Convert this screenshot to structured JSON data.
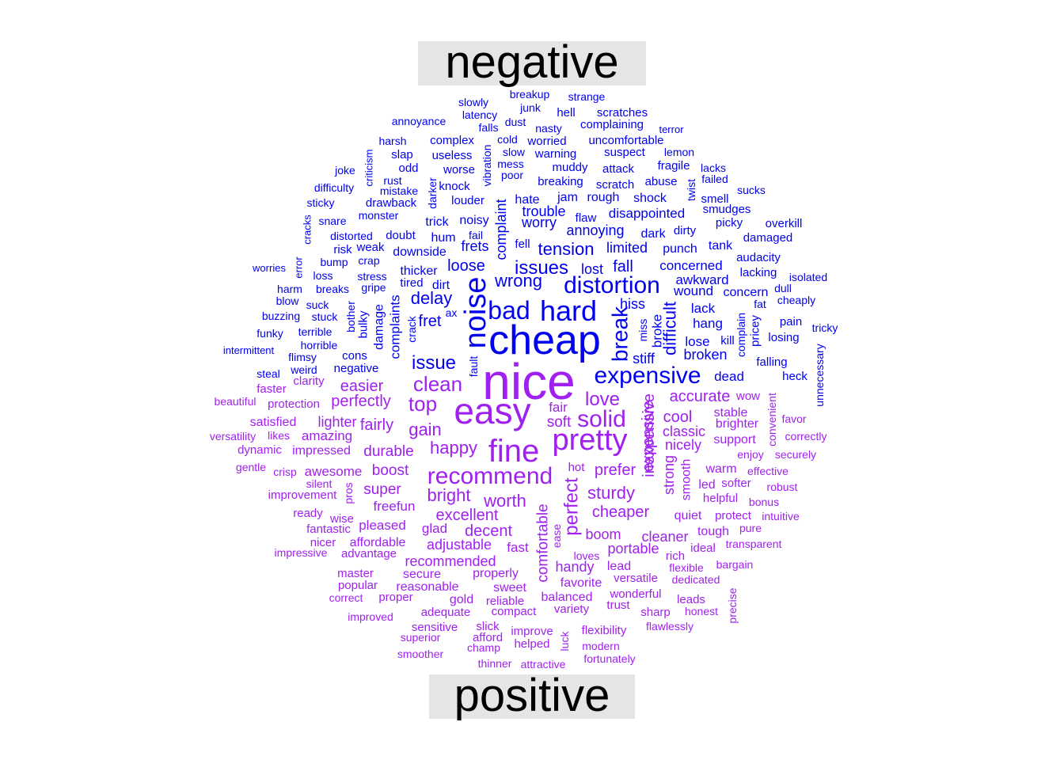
{
  "chart_data": {
    "type": "wordcloud",
    "groups": [
      {
        "name": "negative",
        "color": "#0000ee"
      },
      {
        "name": "positive",
        "color": "#a020f0"
      }
    ],
    "words": {
      "negative": [
        "cheap",
        "noise",
        "hard",
        "distortion",
        "bad",
        "expensive",
        "issues",
        "wrong",
        "tension",
        "issue",
        "break",
        "delay",
        "loud",
        "fret",
        "difficult",
        "loose",
        "trouble",
        "worry",
        "annoying",
        "limited",
        "fall",
        "complaint",
        "hiss",
        "stiff",
        "broken",
        "disappointed",
        "frets",
        "lost",
        "concerned",
        "awkward",
        "wound",
        "lack",
        "hang",
        "lose",
        "dead",
        "concern",
        "punch",
        "tank",
        "dark",
        "dirty",
        "flaw",
        "rough",
        "hate",
        "jam",
        "shock",
        "noisy",
        "hum",
        "trick",
        "downside",
        "doubt",
        "thicker",
        "dirt",
        "tired",
        "fell",
        "fail",
        "complaints",
        "damage",
        "crack",
        "fault",
        "miss",
        "broke",
        "kill",
        "complain",
        "pricey",
        "falling",
        "heck",
        "losing",
        "pain",
        "cheaply",
        "tricky",
        "unnecessary",
        "isolated",
        "dull",
        "fat",
        "lacking",
        "audacity",
        "damaged",
        "overkill",
        "picky",
        "smudges",
        "smell",
        "twist",
        "sucks",
        "failed",
        "lacks",
        "fragile",
        "lemon",
        "terror",
        "abuse",
        "suspect",
        "attack",
        "scratch",
        "breaking",
        "muddy",
        "warning",
        "uncomfortable",
        "worried",
        "complaining",
        "scratches",
        "hell",
        "strange",
        "breakup",
        "junk",
        "dust",
        "nasty",
        "cold",
        "slow",
        "mess",
        "poor",
        "vibration",
        "louder",
        "knock",
        "darker",
        "worse",
        "useless",
        "complex",
        "falls",
        "latency",
        "slowly",
        "annoyance",
        "harsh",
        "slap",
        "odd",
        "rust",
        "mistake",
        "drawback",
        "monster",
        "snare",
        "distorted",
        "weak",
        "risk",
        "crap",
        "bump",
        "stress",
        "gripe",
        "breaks",
        "suck",
        "stuck",
        "bother",
        "bulky",
        "terrible",
        "horrible",
        "cons",
        "flimsy",
        "weird",
        "negative",
        "steal",
        "intermittent",
        "funky",
        "buzzing",
        "blow",
        "harm",
        "loss",
        "worries",
        "error",
        "cracks",
        "sticky",
        "difficulty",
        "joke",
        "criticism",
        "ax"
      ],
      "positive": [
        "nice",
        "easy",
        "pretty",
        "fine",
        "recommend",
        "solid",
        "clean",
        "top",
        "love",
        "expensive",
        "gain",
        "happy",
        "bright",
        "worth",
        "perfect",
        "perfectly",
        "easier",
        "sturdy",
        "inexpensive",
        "prefer",
        "accurate",
        "cool",
        "excellent",
        "decent",
        "cheaper",
        "comfortable",
        "fairly",
        "durable",
        "boost",
        "super",
        "lighter",
        "soft",
        "fair",
        "classic",
        "nicely",
        "strong",
        "smooth",
        "adjustable",
        "recommended",
        "handy",
        "boom",
        "cleaner",
        "portable",
        "quiet",
        "warm",
        "led",
        "softer",
        "helpful",
        "stable",
        "brighter",
        "support",
        "convenient",
        "wow",
        "favor",
        "correctly",
        "enjoy",
        "securely",
        "effective",
        "robust",
        "bonus",
        "intuitive",
        "pure",
        "protect",
        "tough",
        "transparent",
        "ideal",
        "rich",
        "flexible",
        "bargain",
        "dedicated",
        "leads",
        "honest",
        "precise",
        "flawlessly",
        "sharp",
        "trust",
        "wonderful",
        "versatile",
        "lead",
        "favorite",
        "balanced",
        "variety",
        "ease",
        "loves",
        "hot",
        "fast",
        "pleased",
        "glad",
        "affordable",
        "advantage",
        "nicer",
        "fantastic",
        "wise",
        "ready",
        "pros",
        "improvement",
        "silent",
        "crisp",
        "awesome",
        "amazing",
        "impressed",
        "dynamic",
        "gentle",
        "versatility",
        "likes",
        "satisfied",
        "beautiful",
        "faster",
        "protection",
        "clarity",
        "freefun",
        "secure",
        "reasonable",
        "proper",
        "gold",
        "reliable",
        "sweet",
        "properly",
        "compact",
        "adequate",
        "improved",
        "correct",
        "popular",
        "master",
        "impressive",
        "sensitive",
        "superior",
        "smoother",
        "slick",
        "afford",
        "champ",
        "improve",
        "helped",
        "luck",
        "flexibility",
        "modern",
        "fortunately",
        "attractive",
        "thinner"
      ]
    },
    "labels": {
      "top": "negative",
      "bottom": "positive"
    }
  }
}
